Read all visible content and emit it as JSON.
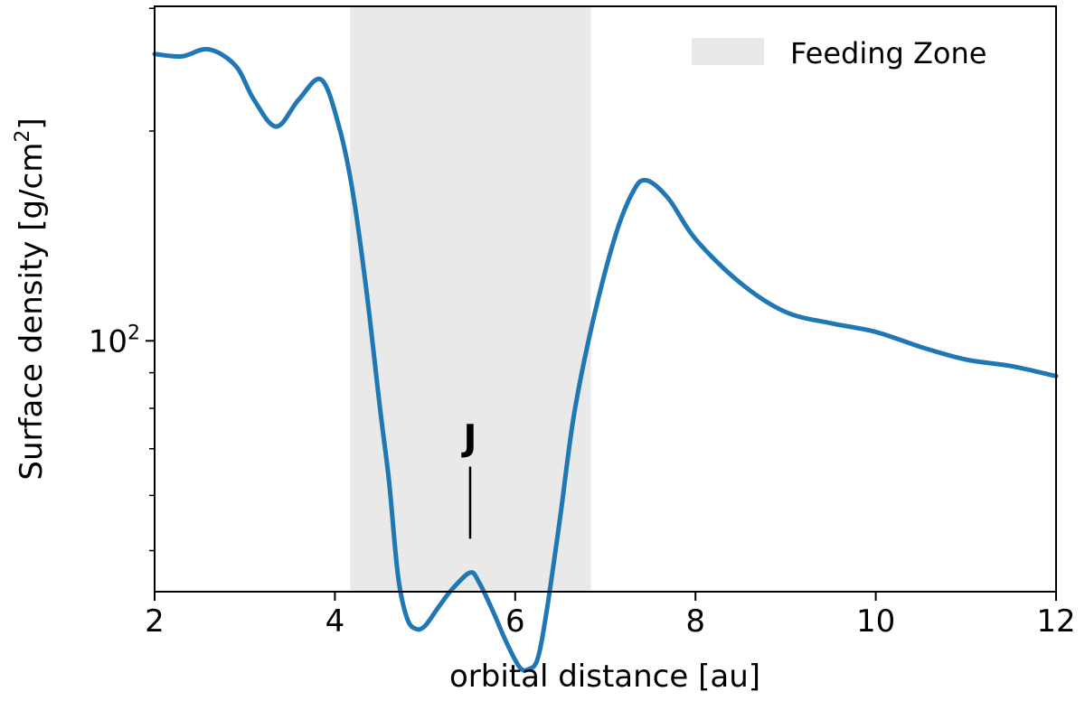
{
  "chart_data": {
    "type": "line",
    "xlabel": "orbital distance [au]",
    "ylabel_main": "Surface density [g/cm",
    "ylabel_sup": "2",
    "ylabel_tail": "]",
    "xlim": [
      2,
      12
    ],
    "ylim_log10": [
      1.64,
      2.48
    ],
    "y_scale": "log",
    "x_ticks": [
      2,
      4,
      6,
      8,
      10,
      12
    ],
    "x_tick_labels": [
      "2",
      "4",
      "6",
      "8",
      "10",
      "12"
    ],
    "y_ticks": [
      100
    ],
    "y_tick_label_base": "10",
    "y_tick_label_exp": "2",
    "y_minor_ticks": [
      50,
      60,
      70,
      80,
      90,
      200,
      300
    ],
    "grid": false,
    "legend": {
      "position": "top-right",
      "label": "Feeding Zone"
    },
    "feeding_zone": {
      "x_start": 4.17,
      "x_end": 6.84,
      "color": "#e9e9e9"
    },
    "annotation": {
      "text": "J",
      "x": 5.5,
      "y_line_top": 66,
      "y_line_bottom": 52
    },
    "series": [
      {
        "color": "#1f77b4",
        "x": [
          2.0,
          2.3,
          2.6,
          2.9,
          3.1,
          3.35,
          3.6,
          3.85,
          4.05,
          4.2,
          4.35,
          4.5,
          4.6,
          4.7,
          4.8,
          4.9,
          5.0,
          5.15,
          5.3,
          5.5,
          5.6,
          5.75,
          5.9,
          6.05,
          6.15,
          6.25,
          6.35,
          6.5,
          6.65,
          6.85,
          7.1,
          7.3,
          7.45,
          7.7,
          8.0,
          8.5,
          9.0,
          9.5,
          10.0,
          10.5,
          11.0,
          11.5,
          12.0
        ],
        "y": [
          258,
          256,
          262,
          248,
          222,
          203,
          222,
          237,
          202,
          163,
          118,
          80,
          63,
          46,
          40,
          38.6,
          39,
          41.5,
          44,
          46.5,
          45,
          41,
          37,
          34,
          33.8,
          35,
          41,
          56,
          78,
          105,
          140,
          163,
          170,
          160,
          140,
          121,
          110,
          106,
          103,
          98,
          94,
          92,
          89
        ]
      }
    ]
  }
}
